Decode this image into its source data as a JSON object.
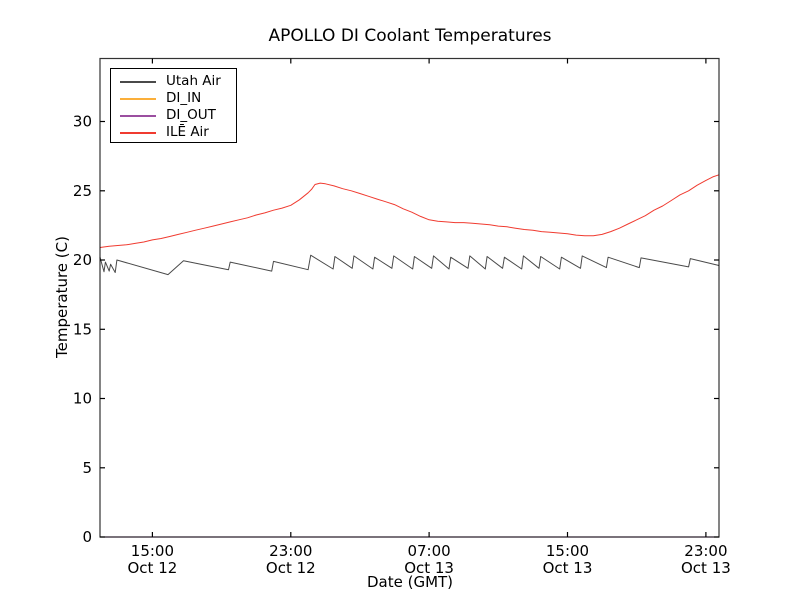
{
  "chart": {
    "title": "APOLLO DI Coolant Temperatures",
    "xlabel": "Date (GMT)",
    "ylabel": "Temperature (C)"
  },
  "chart_data": {
    "type": "line",
    "title": "APOLLO DI Coolant Temperatures",
    "xlabel": "Date (GMT)",
    "ylabel": "Temperature (C)",
    "x_unit": "hours since Oct 12 00:00 GMT",
    "xlim": [
      11.97,
      47.76
    ],
    "ylim": [
      0,
      34.55
    ],
    "grid": false,
    "legend_position": "upper left",
    "y_ticks": [
      0,
      5,
      10,
      15,
      20,
      25,
      30
    ],
    "x_ticks": [
      {
        "t": 15,
        "line1": "15:00",
        "line2": "Oct 12"
      },
      {
        "t": 23,
        "line1": "23:00",
        "line2": "Oct 12"
      },
      {
        "t": 31,
        "line1": "07:00",
        "line2": "Oct 13"
      },
      {
        "t": 39,
        "line1": "15:00",
        "line2": "Oct 13"
      },
      {
        "t": 47,
        "line1": "23:00",
        "line2": "Oct 13"
      }
    ],
    "series": [
      {
        "name": "Utah Air",
        "color": "#4a4a4a",
        "points": [
          [
            11.97,
            20.2
          ],
          [
            12.2,
            19.15
          ],
          [
            12.28,
            19.85
          ],
          [
            12.5,
            19.2
          ],
          [
            12.58,
            19.7
          ],
          [
            12.85,
            19.1
          ],
          [
            12.95,
            20.0
          ],
          [
            15.9,
            18.95
          ],
          [
            16.8,
            19.95
          ],
          [
            17.8,
            19.7
          ],
          [
            19.4,
            19.3
          ],
          [
            19.5,
            19.85
          ],
          [
            21.9,
            19.2
          ],
          [
            22.0,
            19.9
          ],
          [
            24.0,
            19.3
          ],
          [
            24.15,
            20.35
          ],
          [
            25.45,
            19.35
          ],
          [
            25.55,
            20.25
          ],
          [
            26.55,
            19.4
          ],
          [
            26.65,
            20.3
          ],
          [
            27.75,
            19.35
          ],
          [
            27.85,
            20.2
          ],
          [
            28.85,
            19.4
          ],
          [
            28.95,
            20.3
          ],
          [
            30.05,
            19.35
          ],
          [
            30.15,
            20.25
          ],
          [
            31.15,
            19.4
          ],
          [
            31.25,
            20.3
          ],
          [
            32.15,
            19.35
          ],
          [
            32.25,
            20.2
          ],
          [
            33.25,
            19.4
          ],
          [
            33.35,
            20.3
          ],
          [
            34.25,
            19.35
          ],
          [
            34.35,
            20.25
          ],
          [
            35.25,
            19.4
          ],
          [
            35.35,
            20.2
          ],
          [
            36.35,
            19.35
          ],
          [
            36.45,
            20.3
          ],
          [
            37.35,
            19.4
          ],
          [
            37.45,
            20.25
          ],
          [
            38.55,
            19.35
          ],
          [
            38.65,
            20.2
          ],
          [
            39.75,
            19.4
          ],
          [
            39.85,
            20.3
          ],
          [
            41.25,
            19.45
          ],
          [
            41.35,
            20.2
          ],
          [
            43.15,
            19.45
          ],
          [
            43.25,
            20.15
          ],
          [
            46.0,
            19.5
          ],
          [
            46.1,
            20.1
          ],
          [
            47.76,
            19.6
          ]
        ]
      },
      {
        "name": "DI_IN",
        "color": "#fbaf3a",
        "points": [
          [
            11.97,
            0
          ],
          [
            47.76,
            0
          ]
        ]
      },
      {
        "name": "DI_OUT",
        "color": "#9b4fa0",
        "points": [
          [
            11.97,
            0
          ],
          [
            47.76,
            0
          ]
        ]
      },
      {
        "name": "ILĒ Air",
        "color": "#f03b30",
        "points": [
          [
            11.97,
            20.9
          ],
          [
            12.5,
            21.0
          ],
          [
            13,
            21.05
          ],
          [
            13.5,
            21.1
          ],
          [
            14,
            21.2
          ],
          [
            14.5,
            21.3
          ],
          [
            15,
            21.45
          ],
          [
            15.5,
            21.55
          ],
          [
            16,
            21.7
          ],
          [
            16.5,
            21.85
          ],
          [
            17,
            22.0
          ],
          [
            17.5,
            22.15
          ],
          [
            18,
            22.3
          ],
          [
            18.5,
            22.45
          ],
          [
            19,
            22.6
          ],
          [
            19.5,
            22.75
          ],
          [
            20,
            22.9
          ],
          [
            20.5,
            23.05
          ],
          [
            21,
            23.25
          ],
          [
            21.5,
            23.4
          ],
          [
            22,
            23.6
          ],
          [
            22.5,
            23.75
          ],
          [
            23,
            23.95
          ],
          [
            23.5,
            24.35
          ],
          [
            24,
            24.85
          ],
          [
            24.2,
            25.1
          ],
          [
            24.4,
            25.45
          ],
          [
            24.7,
            25.55
          ],
          [
            25,
            25.5
          ],
          [
            25.5,
            25.35
          ],
          [
            26,
            25.15
          ],
          [
            26.5,
            25.0
          ],
          [
            27,
            24.8
          ],
          [
            27.5,
            24.6
          ],
          [
            28,
            24.4
          ],
          [
            28.5,
            24.2
          ],
          [
            29,
            24.0
          ],
          [
            29.5,
            23.7
          ],
          [
            30,
            23.45
          ],
          [
            30.5,
            23.15
          ],
          [
            31,
            22.9
          ],
          [
            31.5,
            22.8
          ],
          [
            32,
            22.75
          ],
          [
            32.5,
            22.7
          ],
          [
            33,
            22.7
          ],
          [
            33.5,
            22.65
          ],
          [
            34,
            22.6
          ],
          [
            34.5,
            22.55
          ],
          [
            35,
            22.45
          ],
          [
            35.5,
            22.4
          ],
          [
            36,
            22.3
          ],
          [
            36.5,
            22.2
          ],
          [
            37,
            22.15
          ],
          [
            37.5,
            22.05
          ],
          [
            38,
            22.0
          ],
          [
            38.5,
            21.95
          ],
          [
            39,
            21.9
          ],
          [
            39.5,
            21.8
          ],
          [
            40,
            21.75
          ],
          [
            40.5,
            21.75
          ],
          [
            41,
            21.85
          ],
          [
            41.5,
            22.05
          ],
          [
            42,
            22.3
          ],
          [
            42.5,
            22.6
          ],
          [
            43,
            22.9
          ],
          [
            43.5,
            23.2
          ],
          [
            44,
            23.6
          ],
          [
            44.5,
            23.9
          ],
          [
            45,
            24.3
          ],
          [
            45.5,
            24.7
          ],
          [
            46,
            25.0
          ],
          [
            46.5,
            25.4
          ],
          [
            47,
            25.75
          ],
          [
            47.4,
            26.0
          ],
          [
            47.76,
            26.15
          ]
        ]
      }
    ]
  }
}
